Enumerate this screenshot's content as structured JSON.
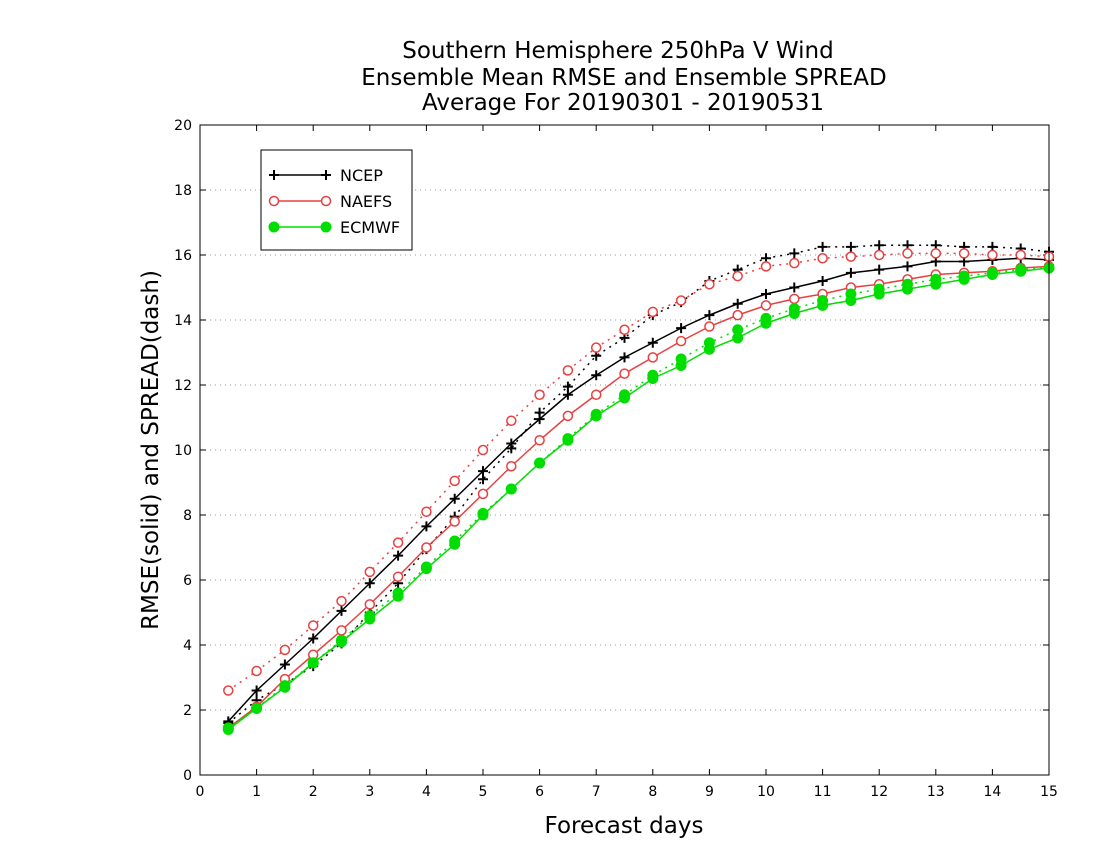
{
  "chart_data": {
    "type": "line",
    "title": [
      "Southern Hemisphere 250hPa V Wind",
      "Ensemble Mean RMSE and Ensemble SPREAD",
      "Average For 20190301 - 20190531"
    ],
    "xlabel": "Forecast days",
    "ylabel": "RMSE(solid) and SPREAD(dash)",
    "xlim": [
      0,
      15
    ],
    "ylim": [
      0,
      20
    ],
    "xticks": [
      0,
      1,
      2,
      3,
      4,
      5,
      6,
      7,
      8,
      9,
      10,
      11,
      12,
      13,
      14,
      15
    ],
    "yticks": [
      0,
      2,
      4,
      6,
      8,
      10,
      12,
      14,
      16,
      18,
      20
    ],
    "grid": "horizontal dotted",
    "legend_position": "top-left",
    "x": [
      0.5,
      1,
      1.5,
      2,
      2.5,
      3,
      3.5,
      4,
      4.5,
      5,
      5.5,
      6,
      6.5,
      7,
      7.5,
      8,
      8.5,
      9,
      9.5,
      10,
      10.5,
      11,
      11.5,
      12,
      12.5,
      13,
      13.5,
      14,
      14.5,
      15
    ],
    "series": [
      {
        "name": "NCEP",
        "color": "#000000",
        "marker": "plus",
        "rmse": [
          1.65,
          2.6,
          3.4,
          4.2,
          5.05,
          5.9,
          6.75,
          7.65,
          8.5,
          9.35,
          10.2,
          10.95,
          11.7,
          12.3,
          12.85,
          13.3,
          13.75,
          14.15,
          14.5,
          14.8,
          15.0,
          15.2,
          15.45,
          15.55,
          15.65,
          15.8,
          15.8,
          15.85,
          15.9,
          15.85
        ],
        "spread": [
          1.6,
          2.3,
          2.8,
          3.35,
          4.05,
          5.0,
          5.9,
          6.95,
          7.95,
          9.1,
          10.05,
          11.15,
          11.95,
          12.9,
          13.45,
          14.15,
          14.55,
          15.2,
          15.55,
          15.9,
          16.05,
          16.25,
          16.25,
          16.3,
          16.3,
          16.3,
          16.25,
          16.25,
          16.2,
          16.1
        ]
      },
      {
        "name": "NAEFS",
        "color": "#e84040",
        "marker": "open-circle",
        "rmse": [
          1.45,
          2.1,
          2.95,
          3.7,
          4.45,
          5.25,
          6.1,
          7.0,
          7.8,
          8.65,
          9.5,
          10.3,
          11.05,
          11.7,
          12.35,
          12.85,
          13.35,
          13.8,
          14.15,
          14.45,
          14.65,
          14.8,
          15.0,
          15.1,
          15.25,
          15.4,
          15.45,
          15.5,
          15.6,
          15.65
        ],
        "spread": [
          2.6,
          3.2,
          3.85,
          4.6,
          5.35,
          6.25,
          7.15,
          8.1,
          9.05,
          10.0,
          10.9,
          11.7,
          12.45,
          13.15,
          13.7,
          14.25,
          14.6,
          15.1,
          15.35,
          15.65,
          15.75,
          15.9,
          15.95,
          16.0,
          16.05,
          16.05,
          16.05,
          16.0,
          16.0,
          15.95
        ]
      },
      {
        "name": "ECMWF",
        "color": "#00dd00",
        "marker": "filled-circle",
        "rmse": [
          1.4,
          2.05,
          2.7,
          3.45,
          4.1,
          4.8,
          5.5,
          6.35,
          7.1,
          8.0,
          8.8,
          9.6,
          10.3,
          11.05,
          11.6,
          12.2,
          12.6,
          13.1,
          13.45,
          13.9,
          14.2,
          14.45,
          14.6,
          14.8,
          14.95,
          15.1,
          15.25,
          15.4,
          15.5,
          15.6
        ],
        "spread": [
          1.45,
          2.05,
          2.75,
          3.45,
          4.15,
          4.9,
          5.6,
          6.4,
          7.2,
          8.05,
          8.8,
          9.6,
          10.35,
          11.1,
          11.7,
          12.3,
          12.8,
          13.3,
          13.7,
          14.05,
          14.35,
          14.6,
          14.8,
          14.95,
          15.1,
          15.25,
          15.35,
          15.45,
          15.55,
          15.6
        ]
      }
    ]
  }
}
